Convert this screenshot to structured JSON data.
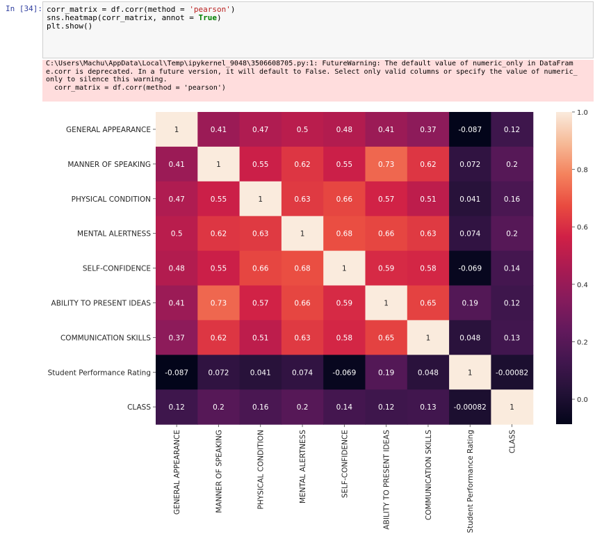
{
  "cell": {
    "prompt": "In [34]:",
    "code": [
      {
        "parts": [
          {
            "t": "corr_matrix = df.corr(method = ",
            "c": ""
          },
          {
            "t": "'pearson'",
            "c": "tok-str"
          },
          {
            "t": ")",
            "c": ""
          }
        ]
      },
      {
        "parts": [
          {
            "t": "sns.heatmap(corr_matrix, annot = ",
            "c": ""
          },
          {
            "t": "True",
            "c": "tok-kw"
          },
          {
            "t": ")",
            "c": ""
          }
        ]
      },
      {
        "parts": [
          {
            "t": "plt.show()",
            "c": ""
          }
        ]
      }
    ]
  },
  "warning": {
    "lines": [
      "C:\\Users\\Machu\\AppData\\Local\\Temp\\ipykernel_9048\\3506608705.py:1: FutureWarning: The default value of numeric_only in DataFram",
      "e.corr is deprecated. In a future version, it will default to False. Select only valid columns or specify the value of numeric_",
      "only to silence this warning.",
      "  corr_matrix = df.corr(method = 'pearson')"
    ]
  },
  "chart_data": {
    "type": "heatmap",
    "title": "",
    "row_labels": [
      "GENERAL APPEARANCE",
      "MANNER OF SPEAKING",
      "PHYSICAL CONDITION",
      "MENTAL ALERTNESS",
      "SELF-CONFIDENCE",
      "ABILITY TO PRESENT IDEAS",
      "COMMUNICATION SKILLS",
      "Student Performance Rating",
      "CLASS"
    ],
    "col_labels": [
      "GENERAL APPEARANCE",
      "MANNER OF SPEAKING",
      "PHYSICAL CONDITION",
      "MENTAL ALERTNESS",
      "SELF-CONFIDENCE",
      "ABILITY TO PRESENT IDEAS",
      "COMMUNICATION SKILLS",
      "Student Performance Rating",
      "CLASS"
    ],
    "values": [
      [
        1,
        0.41,
        0.47,
        0.5,
        0.48,
        0.41,
        0.37,
        -0.087,
        0.12
      ],
      [
        0.41,
        1,
        0.55,
        0.62,
        0.55,
        0.73,
        0.62,
        0.072,
        0.2
      ],
      [
        0.47,
        0.55,
        1,
        0.63,
        0.66,
        0.57,
        0.51,
        0.041,
        0.16
      ],
      [
        0.5,
        0.62,
        0.63,
        1,
        0.68,
        0.66,
        0.63,
        0.074,
        0.2
      ],
      [
        0.48,
        0.55,
        0.66,
        0.68,
        1,
        0.59,
        0.58,
        -0.069,
        0.14
      ],
      [
        0.41,
        0.73,
        0.57,
        0.66,
        0.59,
        1,
        0.65,
        0.19,
        0.12
      ],
      [
        0.37,
        0.62,
        0.51,
        0.63,
        0.58,
        0.65,
        1,
        0.048,
        0.13
      ],
      [
        -0.087,
        0.072,
        0.041,
        0.074,
        -0.069,
        0.19,
        0.048,
        1,
        -0.00082
      ],
      [
        0.12,
        0.2,
        0.16,
        0.2,
        0.14,
        0.12,
        0.13,
        -0.00082,
        1
      ]
    ],
    "annotations": [
      [
        "1",
        "0.41",
        "0.47",
        "0.5",
        "0.48",
        "0.41",
        "0.37",
        "-0.087",
        "0.12"
      ],
      [
        "0.41",
        "1",
        "0.55",
        "0.62",
        "0.55",
        "0.73",
        "0.62",
        "0.072",
        "0.2"
      ],
      [
        "0.47",
        "0.55",
        "1",
        "0.63",
        "0.66",
        "0.57",
        "0.51",
        "0.041",
        "0.16"
      ],
      [
        "0.5",
        "0.62",
        "0.63",
        "1",
        "0.68",
        "0.66",
        "0.63",
        "0.074",
        "0.2"
      ],
      [
        "0.48",
        "0.55",
        "0.66",
        "0.68",
        "1",
        "0.59",
        "0.58",
        "-0.069",
        "0.14"
      ],
      [
        "0.41",
        "0.73",
        "0.57",
        "0.66",
        "0.59",
        "1",
        "0.65",
        "0.19",
        "0.12"
      ],
      [
        "0.37",
        "0.62",
        "0.51",
        "0.63",
        "0.58",
        "0.65",
        "1",
        "0.048",
        "0.13"
      ],
      [
        "-0.087",
        "0.072",
        "0.041",
        "0.074",
        "-0.069",
        "0.19",
        "0.048",
        "1",
        "-0.00082"
      ],
      [
        "0.12",
        "0.2",
        "0.16",
        "0.2",
        "0.14",
        "0.12",
        "0.13",
        "-0.00082",
        "1"
      ]
    ],
    "colorbar": {
      "range": [
        -0.087,
        1
      ],
      "ticks": [
        0.0,
        0.2,
        0.4,
        0.6,
        0.8,
        1.0
      ],
      "tick_labels": [
        "0.0",
        "0.2",
        "0.4",
        "0.6",
        "0.8",
        "1.0"
      ]
    },
    "colormap": "rocket"
  }
}
